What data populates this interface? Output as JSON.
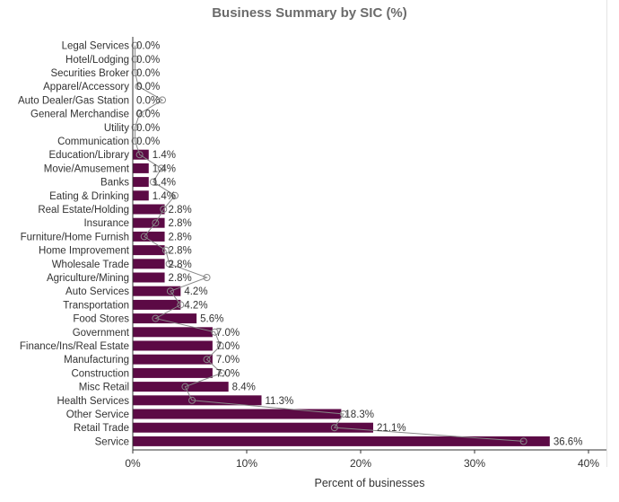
{
  "title": "Business Summary by SIC (%)",
  "chart_data": {
    "type": "bar",
    "orientation": "horizontal",
    "title": "Business Summary by SIC (%)",
    "xlabel": "Percent of businesses",
    "ylabel": "",
    "xlim": [
      0,
      40
    ],
    "x_ticks": [
      "0%",
      "10%",
      "20%",
      "30%",
      "40%"
    ],
    "x_tick_values": [
      0,
      10,
      20,
      30,
      40
    ],
    "grid": false,
    "bar_color": "#5c0a45",
    "overlay_line_color": "#888888",
    "categories": [
      "Legal Services",
      "Hotel/Lodging",
      "Securities Broker",
      "Apparel/Accessory",
      "Auto Dealer/Gas Station",
      "General Merchandise",
      "Utility",
      "Communication",
      "Education/Library",
      "Movie/Amusement",
      "Banks",
      "Eating & Drinking",
      "Real Estate/Holding",
      "Insurance",
      "Furniture/Home Furnish",
      "Home Improvement",
      "Wholesale Trade",
      "Agriculture/Mining",
      "Auto Services",
      "Transportation",
      "Food Stores",
      "Government",
      "Finance/Ins/Real Estate",
      "Manufacturing",
      "Construction",
      "Misc Retail",
      "Health Services",
      "Other Service",
      "Retail Trade",
      "Service"
    ],
    "values": [
      0.0,
      0.0,
      0.0,
      0.0,
      0.0,
      0.0,
      0.0,
      0.0,
      1.4,
      1.4,
      1.4,
      1.4,
      2.8,
      2.8,
      2.8,
      2.8,
      2.8,
      2.8,
      4.2,
      4.2,
      5.6,
      7.0,
      7.0,
      7.0,
      7.0,
      8.4,
      11.3,
      18.3,
      21.1,
      36.6
    ],
    "value_labels": [
      "0.0%",
      "0.0%",
      "0.0%",
      "0.0%",
      "0.0%",
      "0.0%",
      "0.0%",
      "0.0%",
      "1.4%",
      "1.4%",
      "1.4%",
      "1.4%",
      "2.8%",
      "2.8%",
      "2.8%",
      "2.8%",
      "2.8%",
      "2.8%",
      "4.2%",
      "4.2%",
      "5.6%",
      "7.0%",
      "7.0%",
      "7.0%",
      "7.0%",
      "8.4%",
      "11.3%",
      "18.3%",
      "21.1%",
      "36.6%"
    ],
    "overlay_values": [
      0.2,
      0.2,
      0.2,
      0.5,
      2.6,
      0.6,
      0.2,
      0.2,
      0.6,
      2.5,
      1.8,
      3.7,
      2.7,
      2.0,
      1.0,
      2.9,
      3.2,
      6.5,
      3.3,
      4.2,
      2.0,
      7.2,
      7.7,
      6.5,
      7.8,
      4.6,
      5.2,
      18.5,
      17.7,
      34.3
    ]
  }
}
